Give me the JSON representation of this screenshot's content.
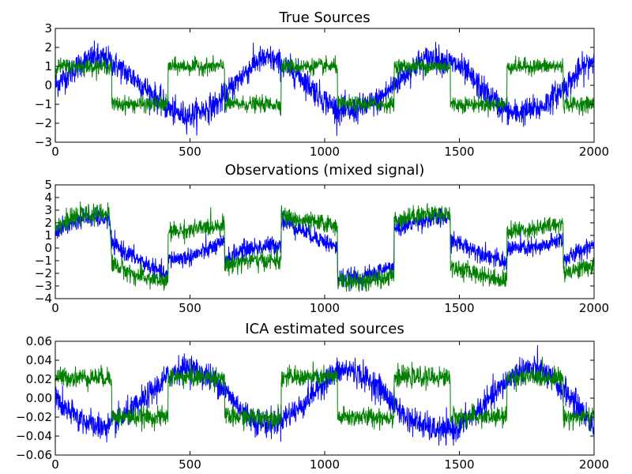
{
  "chart_data": [
    {
      "type": "line",
      "title": "True Sources",
      "xlim": [
        0,
        2000
      ],
      "ylim": [
        -3,
        3
      ],
      "xticks": [
        "0",
        "500",
        "1000",
        "1500",
        "2000"
      ],
      "yticks": [
        "-3",
        "-2",
        "-1",
        "0",
        "1",
        "2",
        "3"
      ],
      "xtick_values": [
        0,
        500,
        1000,
        1500,
        2000
      ],
      "ytick_values": [
        -3,
        -2,
        -1,
        0,
        1,
        2,
        3
      ],
      "grid": false,
      "series": [
        {
          "color": "#0000ff",
          "shape": "sine",
          "x": [
            0,
            100,
            150,
            200,
            300,
            400,
            450,
            500,
            600,
            700,
            750,
            800,
            900,
            1000,
            1050,
            1100,
            1200,
            1300,
            1350,
            1400,
            1500,
            1600,
            1650,
            1700,
            1800,
            1900,
            1950,
            2000
          ],
          "y": [
            0.0,
            1.2,
            1.5,
            1.3,
            0.3,
            -1.0,
            -1.5,
            -1.6,
            -1.0,
            0.6,
            1.3,
            1.4,
            0.6,
            -0.8,
            -1.3,
            -1.4,
            -0.8,
            0.6,
            1.2,
            1.5,
            1.0,
            -0.4,
            -1.1,
            -1.5,
            -1.2,
            0.0,
            0.8,
            1.4
          ],
          "noise": 0.35
        },
        {
          "color": "#007f00",
          "shape": "square",
          "x": [
            0,
            209,
            210,
            418,
            419,
            628,
            629,
            838,
            839,
            1047,
            1048,
            1257,
            1258,
            1466,
            1467,
            1676,
            1677,
            1885,
            1886,
            2000
          ],
          "y": [
            1,
            1,
            -1,
            -1,
            1,
            1,
            -1,
            -1,
            1,
            1,
            -1,
            -1,
            1,
            1,
            -1,
            -1,
            1,
            1,
            -1,
            -1
          ],
          "noise": 0.2
        }
      ]
    },
    {
      "type": "line",
      "title": "Observations (mixed signal)",
      "xlim": [
        0,
        2000
      ],
      "ylim": [
        -4,
        5
      ],
      "xticks": [
        "0",
        "500",
        "1000",
        "1500",
        "2000"
      ],
      "yticks": [
        "-4",
        "-3",
        "-2",
        "-1",
        "0",
        "1",
        "2",
        "3",
        "4",
        "5"
      ],
      "xtick_values": [
        0,
        500,
        1000,
        1500,
        2000
      ],
      "ytick_values": [
        -4,
        -3,
        -2,
        -1,
        0,
        1,
        2,
        3,
        4,
        5
      ],
      "grid": false,
      "series": [
        {
          "color": "#0000ff",
          "shape": "mixed",
          "x": [
            0,
            100,
            200,
            210,
            300,
            418,
            419,
            500,
            628,
            629,
            700,
            838,
            839,
            900,
            1047,
            1048,
            1150,
            1257,
            1258,
            1350,
            1466,
            1467,
            1600,
            1676,
            1677,
            1800,
            1885,
            1886,
            2000
          ],
          "y": [
            1.3,
            2.4,
            2.3,
            0.3,
            -0.8,
            -2.3,
            -0.9,
            -0.7,
            0.4,
            -0.9,
            -0.1,
            0.3,
            2.2,
            1.6,
            0.0,
            -2.4,
            -2.3,
            -1.4,
            1.4,
            2.2,
            2.4,
            0.6,
            -0.5,
            -1.3,
            0.0,
            0.0,
            0.8,
            -1.0,
            0.4
          ],
          "noise": 0.35
        },
        {
          "color": "#007f00",
          "shape": "mixed",
          "x": [
            0,
            100,
            200,
            210,
            300,
            418,
            419,
            500,
            628,
            629,
            700,
            838,
            839,
            900,
            1047,
            1048,
            1150,
            1257,
            1258,
            1350,
            1466,
            1467,
            1600,
            1676,
            1677,
            1800,
            1885,
            1886,
            2000
          ],
          "y": [
            1.8,
            2.6,
            2.8,
            -1.2,
            -2.2,
            -2.7,
            1.3,
            1.4,
            1.9,
            -1.4,
            -1.0,
            -1.0,
            2.6,
            2.2,
            1.8,
            -2.6,
            -2.7,
            -2.2,
            2.2,
            2.7,
            2.7,
            -1.5,
            -2.2,
            -2.6,
            1.3,
            1.6,
            2.0,
            -1.9,
            -1.4
          ],
          "noise": 0.35
        }
      ]
    },
    {
      "type": "line",
      "title": "ICA estimated sources",
      "xlim": [
        0,
        2000
      ],
      "ylim": [
        -0.06,
        0.06
      ],
      "xticks": [
        "0",
        "500",
        "1000",
        "1500",
        "2000"
      ],
      "yticks": [
        "-0.06",
        "-0.04",
        "-0.02",
        "0.00",
        "0.02",
        "0.04",
        "0.06"
      ],
      "xtick_values": [
        0,
        500,
        1000,
        1500,
        2000
      ],
      "ytick_values": [
        -0.06,
        -0.04,
        -0.02,
        0,
        0.02,
        0.04,
        0.06
      ],
      "grid": false,
      "series": [
        {
          "color": "#0000ff",
          "shape": "sine",
          "x": [
            0,
            50,
            150,
            200,
            300,
            400,
            450,
            500,
            600,
            700,
            750,
            800,
            900,
            1000,
            1050,
            1100,
            1200,
            1300,
            1400,
            1450,
            1500,
            1600,
            1700,
            1750,
            1800,
            1900,
            2000
          ],
          "y": [
            0.0,
            -0.015,
            -0.03,
            -0.03,
            -0.01,
            0.018,
            0.03,
            0.032,
            0.018,
            -0.015,
            -0.025,
            -0.028,
            -0.012,
            0.018,
            0.028,
            0.03,
            0.012,
            -0.02,
            -0.033,
            -0.035,
            -0.03,
            -0.005,
            0.025,
            0.032,
            0.03,
            0.005,
            -0.03
          ],
          "noise": 0.007
        },
        {
          "color": "#007f00",
          "shape": "square",
          "x": [
            0,
            209,
            210,
            418,
            419,
            628,
            629,
            838,
            839,
            1047,
            1048,
            1257,
            1258,
            1466,
            1467,
            1676,
            1677,
            1885,
            1886,
            2000
          ],
          "y": [
            0.022,
            0.022,
            -0.02,
            -0.02,
            0.022,
            0.022,
            -0.02,
            -0.02,
            0.022,
            0.022,
            -0.02,
            -0.02,
            0.022,
            0.022,
            -0.02,
            -0.02,
            0.022,
            0.022,
            -0.02,
            -0.02
          ],
          "noise": 0.005
        }
      ]
    }
  ]
}
